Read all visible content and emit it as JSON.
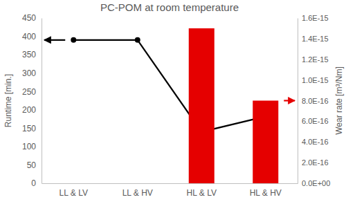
{
  "chart_data": {
    "type": "combo",
    "title": "PC-POM at room temperature",
    "ylabel": "Runtime [min.]",
    "y2label": "Wear rate [m³/Nm]",
    "categories": [
      "LL & LV",
      "LL & HV",
      "HL & LV",
      "HL & HV"
    ],
    "series": [
      {
        "type": "line",
        "color": "#000000",
        "marker": "circle",
        "values": [
          390,
          390,
          140,
          182
        ]
      },
      {
        "type": "bar",
        "axis": "y2",
        "color": "#e50000",
        "values": [
          null,
          null,
          1.5e-15,
          8e-16
        ]
      }
    ],
    "ylim": [
      0,
      450
    ],
    "yticks": [
      0,
      50,
      100,
      150,
      200,
      250,
      300,
      350,
      400,
      450
    ],
    "y2lim": [
      0,
      1.6e-15
    ],
    "y2ticks": [
      {
        "value": 0,
        "label": "0.0E+00"
      },
      {
        "value": 2e-16,
        "label": "2.0E-16"
      },
      {
        "value": 4e-16,
        "label": "4.0E-16"
      },
      {
        "value": 6e-16,
        "label": "6.0E-16"
      },
      {
        "value": 8e-16,
        "label": "8.0E-16"
      },
      {
        "value": 1e-15,
        "label": "1.0E-15"
      },
      {
        "value": 1.2e-15,
        "label": "1.2E-15"
      },
      {
        "value": 1.4e-15,
        "label": "1.4E-15"
      },
      {
        "value": 1.6e-15,
        "label": "1.6E-15"
      }
    ],
    "grid": false
  }
}
